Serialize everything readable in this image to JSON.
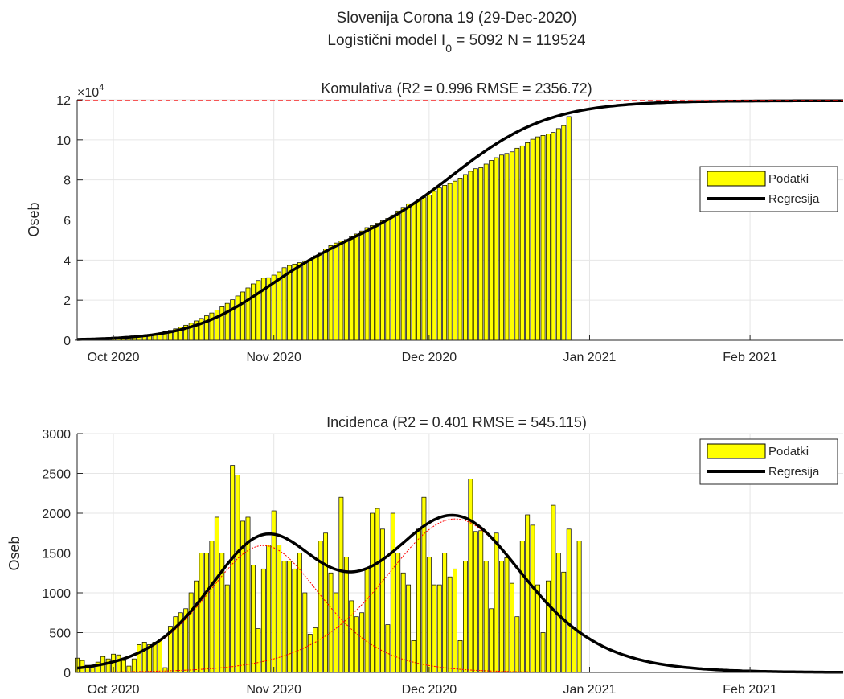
{
  "figure": {
    "title_line1": "Slovenija Corona 19 (29-Dec-2020)",
    "title_line2_prefix": "Logistični model I",
    "title_line2_sub": "0",
    "title_line2_suffix": " = 5092  N = 119524"
  },
  "chart_data": [
    {
      "type": "bar",
      "title": "Komulativa (R2 = 0.996  RMSE = 2356.72)",
      "ylabel": "Oseb",
      "xlabel": "",
      "y_exponent_label": "×10",
      "y_exponent_power": "4",
      "ylim": [
        0,
        120000
      ],
      "yticks": [
        0,
        20000,
        40000,
        60000,
        80000,
        100000,
        120000
      ],
      "ytick_labels": [
        "0",
        "2",
        "4",
        "6",
        "8",
        "10",
        "12"
      ],
      "xlim": [
        "2020-09-24",
        "2021-02-19"
      ],
      "xticks": [
        "2020-10-01",
        "2020-11-01",
        "2020-12-01",
        "2021-01-01",
        "2021-02-01"
      ],
      "xtick_labels": [
        "Oct 2020",
        "Nov 2020",
        "Dec 2020",
        "Jan 2021",
        "Feb 2021"
      ],
      "grid": true,
      "legend": {
        "position": "right",
        "entries": [
          "Podatki",
          "Regresija"
        ]
      },
      "colors": {
        "bars": "#ffff00",
        "bar_edge": "#000000",
        "regression": "#000000",
        "limit_line": "#ff0000"
      },
      "limit_line": 119524,
      "bar_dates_start": "2020-09-24",
      "bar_dates_end": "2020-12-28",
      "bar_values": [
        100,
        150,
        250,
        350,
        400,
        500,
        650,
        800,
        1000,
        1200,
        1450,
        1700,
        2000,
        2350,
        2750,
        3200,
        3700,
        4300,
        4950,
        5700,
        6550,
        7500,
        8500,
        9650,
        10900,
        12200,
        13600,
        15100,
        16700,
        18400,
        20200,
        22100,
        24100,
        26100,
        28100,
        29800,
        31000,
        31200,
        32500,
        34100,
        36200,
        37300,
        38000,
        38700,
        39500,
        40300,
        42100,
        43800,
        45600,
        47200,
        48500,
        49500,
        50200,
        51700,
        53000,
        54500,
        56200,
        57200,
        58400,
        59600,
        60800,
        62500,
        64500,
        66300,
        68100,
        68400,
        69900,
        71200,
        72500,
        74300,
        76000,
        77300,
        78200,
        79400,
        80900,
        82700,
        84300,
        85600,
        86100,
        87900,
        89700,
        91100,
        92400,
        93200,
        94000,
        95800,
        97000,
        98600,
        100300,
        101500,
        102200,
        102900,
        103700,
        105600,
        107100,
        111600
      ],
      "regression_N": 119524,
      "regression_components": [
        {
          "share": 0.4,
          "center_date": "2020-10-30",
          "scale_days": 7.5
        },
        {
          "share": 0.6,
          "center_date": "2020-12-06",
          "scale_days": 9.3
        }
      ]
    },
    {
      "type": "bar",
      "title": "Incidenca (R2 = 0.401  RMSE = 545.115)",
      "ylabel": "Oseb",
      "xlabel": "",
      "ylim": [
        0,
        3000
      ],
      "yticks": [
        0,
        500,
        1000,
        1500,
        2000,
        2500,
        3000
      ],
      "ytick_labels": [
        "0",
        "500",
        "1000",
        "1500",
        "2000",
        "2500",
        "3000"
      ],
      "xlim": [
        "2020-09-24",
        "2021-02-19"
      ],
      "xticks": [
        "2020-10-01",
        "2020-11-01",
        "2020-12-01",
        "2021-01-01",
        "2021-02-01"
      ],
      "xtick_labels": [
        "Oct 2020",
        "Nov 2020",
        "Dec 2020",
        "Jan 2021",
        "Feb 2021"
      ],
      "grid": true,
      "legend": {
        "position": "top-right",
        "entries": [
          "Podatki",
          "Regresija"
        ]
      },
      "colors": {
        "bars": "#ffff00",
        "bar_edge": "#000000",
        "regression": "#000000",
        "components": "#ff0000"
      },
      "bar_dates_start": "2020-09-24",
      "bar_dates_end": "2020-12-28",
      "bar_values": [
        180,
        150,
        90,
        60,
        130,
        200,
        170,
        230,
        220,
        150,
        80,
        170,
        350,
        380,
        350,
        380,
        400,
        60,
        580,
        700,
        750,
        800,
        1000,
        1150,
        1500,
        1500,
        1650,
        1950,
        1500,
        1100,
        2600,
        2480,
        1900,
        1950,
        1350,
        550,
        1300,
        1600,
        2030,
        1600,
        1400,
        1400,
        1300,
        1500,
        1000,
        480,
        560,
        1650,
        1750,
        1250,
        1000,
        2200,
        1450,
        900,
        700,
        750,
        1300,
        2000,
        2060,
        1800,
        600,
        2000,
        1500,
        1250,
        1100,
        400,
        1800,
        2200,
        1450,
        1100,
        1100,
        1500,
        1200,
        1300,
        400,
        1400,
        2430,
        1770,
        1780,
        1400,
        800,
        1750,
        1400,
        1440,
        1120,
        700,
        1650,
        1980,
        1850,
        1100,
        500,
        1150,
        2100,
        1500,
        1260,
        1800,
        550,
        1650
      ],
      "regression_N": 119524,
      "regression_components": [
        {
          "share": 0.4,
          "center_date": "2020-10-30",
          "scale_days": 7.5
        },
        {
          "share": 0.6,
          "center_date": "2020-12-06",
          "scale_days": 9.3
        }
      ]
    }
  ]
}
